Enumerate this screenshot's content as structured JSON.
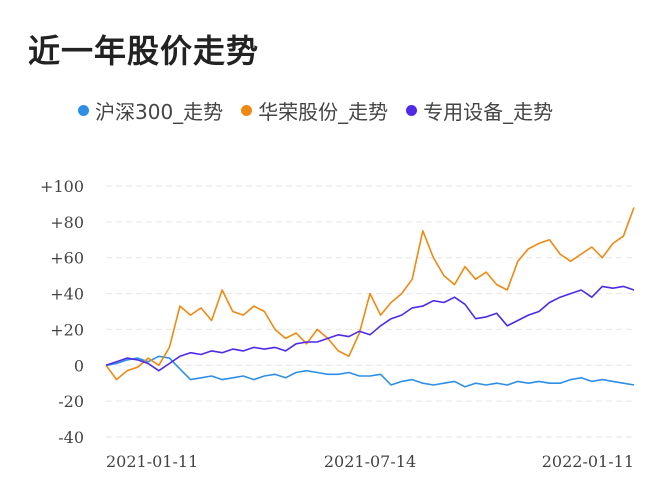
{
  "title": "近一年股价走势",
  "chart_data": {
    "type": "line",
    "title": "近一年股价走势",
    "xlabel": "",
    "ylabel": "",
    "ylim": [
      -40,
      100
    ],
    "y_ticks": [
      "+100",
      "+80",
      "+60",
      "+40",
      "+20",
      "0",
      "-20",
      "-40"
    ],
    "y_tick_values": [
      100,
      80,
      60,
      40,
      20,
      0,
      -20,
      -40
    ],
    "x_ticks": [
      "2021-01-11",
      "2021-07-14",
      "2022-01-11"
    ],
    "x_tick_positions": [
      0,
      0.5,
      1.0
    ],
    "grid": true,
    "legend_position": "top",
    "series": [
      {
        "name": "沪深300_走势",
        "color": "#2f8fe8",
        "x": [
          0,
          0.02,
          0.04,
          0.06,
          0.08,
          0.1,
          0.12,
          0.14,
          0.16,
          0.18,
          0.2,
          0.22,
          0.24,
          0.26,
          0.28,
          0.3,
          0.32,
          0.34,
          0.36,
          0.38,
          0.4,
          0.42,
          0.44,
          0.46,
          0.48,
          0.5,
          0.52,
          0.54,
          0.56,
          0.58,
          0.6,
          0.62,
          0.64,
          0.66,
          0.68,
          0.7,
          0.72,
          0.74,
          0.76,
          0.78,
          0.8,
          0.82,
          0.84,
          0.86,
          0.88,
          0.9,
          0.92,
          0.94,
          0.96,
          0.98,
          1.0
        ],
        "values": [
          0,
          1,
          3,
          4,
          2,
          5,
          4,
          -2,
          -8,
          -7,
          -6,
          -8,
          -7,
          -6,
          -8,
          -6,
          -5,
          -7,
          -4,
          -3,
          -4,
          -5,
          -5,
          -4,
          -6,
          -6,
          -5,
          -11,
          -9,
          -8,
          -10,
          -11,
          -10,
          -9,
          -12,
          -10,
          -11,
          -10,
          -11,
          -9,
          -10,
          -9,
          -10,
          -10,
          -8,
          -7,
          -9,
          -8,
          -9,
          -10,
          -11
        ]
      },
      {
        "name": "华荣股份_走势",
        "color": "#ee8a12",
        "x": [
          0,
          0.02,
          0.04,
          0.06,
          0.08,
          0.1,
          0.12,
          0.14,
          0.16,
          0.18,
          0.2,
          0.22,
          0.24,
          0.26,
          0.28,
          0.3,
          0.32,
          0.34,
          0.36,
          0.38,
          0.4,
          0.42,
          0.44,
          0.46,
          0.48,
          0.5,
          0.52,
          0.54,
          0.56,
          0.58,
          0.6,
          0.62,
          0.64,
          0.66,
          0.68,
          0.7,
          0.72,
          0.74,
          0.76,
          0.78,
          0.8,
          0.82,
          0.84,
          0.86,
          0.88,
          0.9,
          0.92,
          0.94,
          0.96,
          0.98,
          1.0
        ],
        "values": [
          0,
          -8,
          -3,
          -1,
          4,
          0,
          10,
          33,
          28,
          32,
          25,
          42,
          30,
          28,
          33,
          30,
          20,
          15,
          18,
          12,
          20,
          15,
          8,
          5,
          18,
          40,
          28,
          35,
          40,
          48,
          75,
          60,
          50,
          45,
          55,
          48,
          52,
          45,
          42,
          58,
          65,
          68,
          70,
          62,
          58,
          62,
          66,
          60,
          68,
          72,
          88
        ]
      },
      {
        "name": "专用设备_走势",
        "color": "#4f2ae8",
        "x": [
          0,
          0.02,
          0.04,
          0.06,
          0.08,
          0.1,
          0.12,
          0.14,
          0.16,
          0.18,
          0.2,
          0.22,
          0.24,
          0.26,
          0.28,
          0.3,
          0.32,
          0.34,
          0.36,
          0.38,
          0.4,
          0.42,
          0.44,
          0.46,
          0.48,
          0.5,
          0.52,
          0.54,
          0.56,
          0.58,
          0.6,
          0.62,
          0.64,
          0.66,
          0.68,
          0.7,
          0.72,
          0.74,
          0.76,
          0.78,
          0.8,
          0.82,
          0.84,
          0.86,
          0.88,
          0.9,
          0.92,
          0.94,
          0.96,
          0.98,
          1.0
        ],
        "values": [
          0,
          2,
          4,
          3,
          1,
          -3,
          1,
          5,
          7,
          6,
          8,
          7,
          9,
          8,
          10,
          9,
          10,
          8,
          12,
          13,
          13,
          15,
          17,
          16,
          19,
          17,
          22,
          26,
          28,
          32,
          33,
          36,
          35,
          38,
          34,
          26,
          27,
          29,
          22,
          25,
          28,
          30,
          35,
          38,
          40,
          42,
          38,
          44,
          43,
          44,
          42
        ]
      }
    ]
  }
}
